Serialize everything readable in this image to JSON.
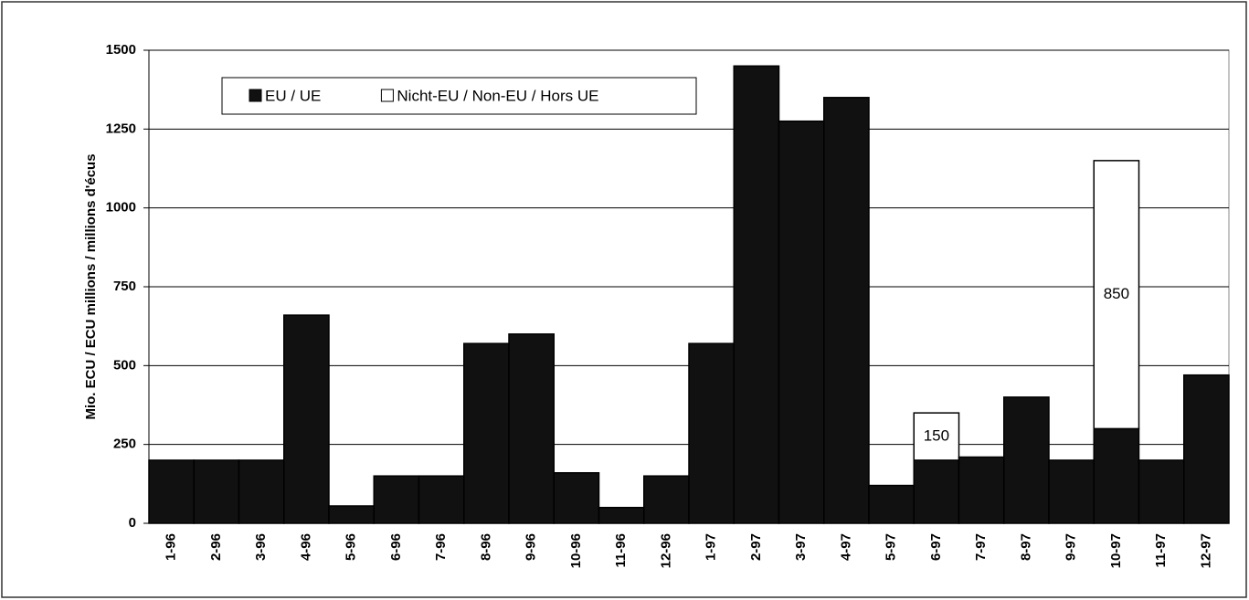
{
  "chart_data": {
    "type": "bar",
    "stacked": true,
    "y_label": "Mio. ECU / ECU millions / millions d'écus",
    "categories": [
      "1-96",
      "2-96",
      "3-96",
      "4-96",
      "5-96",
      "6-96",
      "7-96",
      "8-96",
      "9-96",
      "10-96",
      "11-96",
      "12-96",
      "1-97",
      "2-97",
      "3-97",
      "4-97",
      "5-97",
      "6-97",
      "7-97",
      "8-97",
      "9-97",
      "10-97",
      "11-97",
      "12-97"
    ],
    "series": [
      {
        "name": "EU / UE",
        "color": "#111111",
        "values": [
          200,
          200,
          200,
          660,
          55,
          150,
          150,
          570,
          600,
          160,
          50,
          150,
          570,
          1450,
          1275,
          1350,
          120,
          200,
          210,
          400,
          200,
          300,
          200,
          470
        ]
      },
      {
        "name": "Nicht-EU / Non-EU / Hors UE",
        "color": "#ffffff",
        "values": [
          null,
          null,
          null,
          null,
          null,
          null,
          null,
          null,
          null,
          null,
          null,
          null,
          null,
          null,
          null,
          null,
          null,
          150,
          null,
          null,
          null,
          850,
          null,
          null
        ]
      }
    ],
    "ylim": [
      0,
      1500
    ],
    "yticks": [
      0,
      250,
      500,
      750,
      1000,
      1250,
      1500
    ],
    "grid": true
  }
}
